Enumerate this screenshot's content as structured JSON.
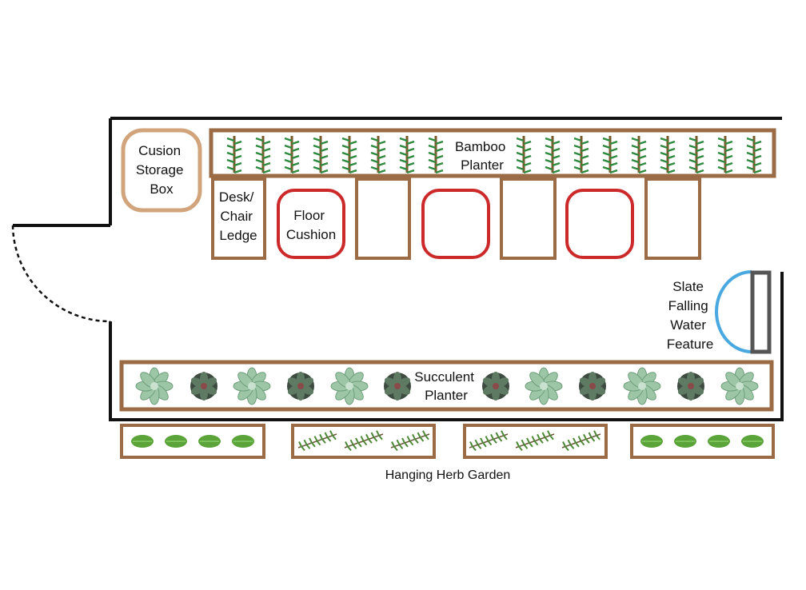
{
  "labels": {
    "cushion_storage": [
      "Cusion",
      "Storage",
      "Box"
    ],
    "bamboo_planter": [
      "Bamboo",
      "Planter"
    ],
    "desk_ledge": [
      "Desk/",
      "Chair",
      "Ledge"
    ],
    "floor_cushion": [
      "Floor",
      "Cushion"
    ],
    "water_feature": [
      "Slate",
      "Falling",
      "Water",
      "Feature"
    ],
    "succulent_planter": [
      "Succulent",
      "Planter"
    ],
    "herb_garden": "Hanging Herb Garden"
  },
  "colors": {
    "wall": "#111111",
    "wood": "#9a6b45",
    "storage_box": "#d2a47c",
    "cushion": "#cc2a2a",
    "water": "#4aa8e0",
    "slate": "#555555",
    "bamboo_stem": "#7a5a2a",
    "bamboo_leaf": "#2e8a3e",
    "succulent_light": "#9cc6a6",
    "succulent_dark": "#3c4a40",
    "basil": "#5aa43a",
    "rosemary": "#4f8a3a"
  },
  "icons": {
    "bamboo": "bamboo-icon",
    "succulent": "succulent-icon",
    "basil": "basil-leaf-icon",
    "rosemary": "rosemary-sprig-icon"
  }
}
